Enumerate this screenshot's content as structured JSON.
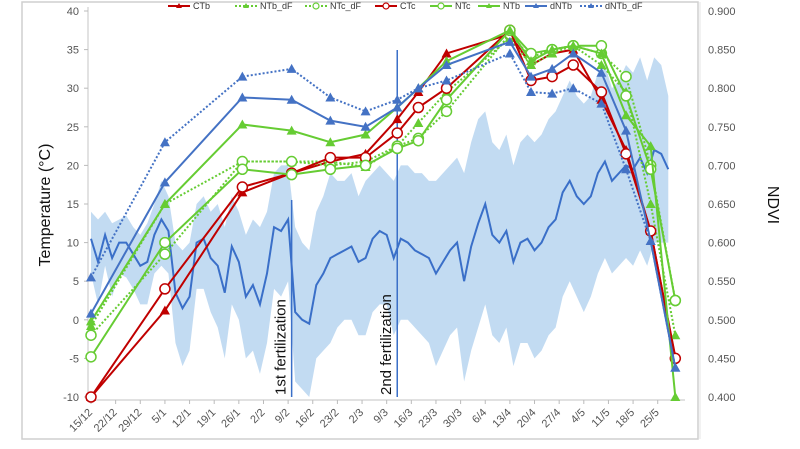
{
  "chart_data": {
    "type": "line",
    "title": "",
    "xlabel": "",
    "ylabel": "Temperature (°C)",
    "y2label": "NDVI",
    "ylim": [
      -10,
      40
    ],
    "y2lim": [
      0.4,
      0.9
    ],
    "yticks": [
      "40",
      "35",
      "30",
      "25",
      "20",
      "15",
      "10",
      "5",
      "0",
      "-5",
      "-10"
    ],
    "y2ticks": [
      "0.900",
      "0.850",
      "0.800",
      "0.750",
      "0.700",
      "0.650",
      "0.600",
      "0.550",
      "0.500",
      "0.450",
      "0.400"
    ],
    "xticks": [
      "15/12",
      "22/12",
      "29/12",
      "5/1",
      "12/1",
      "19/1",
      "26/1",
      "2/2",
      "9/2",
      "16/2",
      "23/2",
      "2/3",
      "9/3",
      "16/3",
      "23/3",
      "30/3",
      "6/4",
      "13/4",
      "20/4",
      "27/4",
      "4/5",
      "11/5",
      "18/5",
      "25/5"
    ],
    "xlim_days": [
      0,
      166
    ],
    "grid": false,
    "legend_position": "top",
    "annotations": [
      {
        "text": "1st fertilization",
        "day": 57
      },
      {
        "text": "2nd fertilization",
        "day": 87
      }
    ],
    "x_days": [
      0,
      21,
      43,
      57,
      68,
      78,
      87,
      93,
      101,
      119,
      125,
      131,
      137,
      145,
      152,
      159,
      166
    ],
    "series": [
      {
        "name": "CTb",
        "color": "#c00000",
        "marker": "triangle",
        "filled": true,
        "dash": false,
        "values": [
          -10,
          1.2,
          16.5,
          19,
          20.5,
          21.5,
          26,
          29.5,
          34.5,
          37,
          33,
          34.5,
          35,
          28.5,
          22,
          11.5,
          -4.8
        ]
      },
      {
        "name": "NTb_dF",
        "color": "#66cc33",
        "marker": "triangle",
        "filled": true,
        "dash": true,
        "values": [
          -0.8,
          15,
          20.5,
          20.5,
          20.5,
          19.8,
          22.5,
          25.5,
          29.5,
          36.5,
          33,
          34.5,
          35.5,
          33,
          29.5,
          15,
          -2
        ]
      },
      {
        "name": "NTc_dF",
        "color": "#66cc33",
        "marker": "circle",
        "filled": false,
        "dash": true,
        "values": [
          -2,
          8.5,
          20.5,
          20.5,
          20,
          20.5,
          22.5,
          23.5,
          27,
          37,
          34,
          35,
          35.5,
          34.5,
          31.5,
          20,
          2.5
        ]
      },
      {
        "name": "CTc",
        "color": "#c00000",
        "marker": "circle",
        "filled": false,
        "dash": false,
        "values": [
          -10,
          4,
          17.2,
          19,
          21,
          21,
          24.2,
          27.5,
          30,
          37.5,
          31,
          31.5,
          33,
          29.5,
          21.5,
          11.5,
          -5
        ]
      },
      {
        "name": "NTc",
        "color": "#66cc33",
        "marker": "circle",
        "filled": false,
        "dash": false,
        "values": [
          -4.8,
          10,
          19.5,
          18.8,
          19.5,
          20,
          22.2,
          23.2,
          28.5,
          37.5,
          34.5,
          35,
          35.5,
          35.5,
          29,
          19.5,
          2.5
        ]
      },
      {
        "name": "NTb",
        "color": "#66cc33",
        "marker": "triangle",
        "filled": true,
        "dash": false,
        "values": [
          -0.2,
          15,
          25.3,
          24.5,
          23,
          24,
          27.5,
          30,
          33.5,
          37.5,
          33.5,
          35,
          35.5,
          34.5,
          26.5,
          22.5,
          -10
        ]
      },
      {
        "name": "dNTb",
        "color": "#4472c4",
        "marker": "triangle",
        "filled": true,
        "dash": false,
        "values": [
          0.8,
          17.8,
          28.8,
          28.5,
          25.8,
          25,
          27.5,
          30,
          33,
          36,
          31.5,
          32.5,
          34.5,
          32,
          24.5,
          10.2,
          -6.2
        ]
      },
      {
        "name": "dNTb_dF",
        "color": "#4472c4",
        "marker": "triangle",
        "filled": true,
        "dash": true,
        "values": [
          5.5,
          23,
          31.5,
          32.5,
          28.8,
          27,
          28.5,
          30,
          31,
          34.5,
          29.5,
          29.3,
          30,
          28,
          19.5,
          10.2,
          -6.2
        ]
      }
    ],
    "ndvi": {
      "name": "NDVI",
      "color": "#3a6fc8",
      "band_color": "#b7d5f0",
      "x_days": [
        0,
        2,
        4,
        6,
        8,
        10,
        12,
        14,
        16,
        18,
        20,
        22,
        24,
        26,
        28,
        30,
        32,
        34,
        36,
        38,
        40,
        42,
        44,
        46,
        48,
        50,
        52,
        54,
        56,
        58,
        60,
        62,
        64,
        66,
        68,
        70,
        72,
        74,
        76,
        78,
        80,
        82,
        84,
        86,
        88,
        90,
        92,
        94,
        96,
        98,
        100,
        102,
        104,
        106,
        108,
        110,
        112,
        114,
        116,
        118,
        120,
        122,
        124,
        126,
        128,
        130,
        132,
        134,
        136,
        138,
        140,
        142,
        144,
        146,
        148,
        150,
        152,
        154,
        156,
        158,
        160,
        162,
        164
      ],
      "mean": [
        0.605,
        0.575,
        0.61,
        0.58,
        0.6,
        0.6,
        0.585,
        0.57,
        0.575,
        0.61,
        0.63,
        0.615,
        0.535,
        0.515,
        0.53,
        0.6,
        0.605,
        0.58,
        0.57,
        0.535,
        0.595,
        0.575,
        0.53,
        0.545,
        0.52,
        0.56,
        0.62,
        0.615,
        0.63,
        0.51,
        0.5,
        0.495,
        0.545,
        0.56,
        0.58,
        0.585,
        0.59,
        0.595,
        0.575,
        0.58,
        0.605,
        0.615,
        0.61,
        0.58,
        0.605,
        0.6,
        0.59,
        0.585,
        0.58,
        0.56,
        0.575,
        0.59,
        0.6,
        0.55,
        0.595,
        0.625,
        0.65,
        0.61,
        0.6,
        0.615,
        0.575,
        0.6,
        0.605,
        0.59,
        0.6,
        0.62,
        0.63,
        0.665,
        0.68,
        0.66,
        0.65,
        0.66,
        0.69,
        0.705,
        0.68,
        0.69,
        0.7,
        0.695,
        0.71,
        0.69,
        0.72,
        0.715,
        0.695
      ],
      "upper": [
        0.64,
        0.63,
        0.64,
        0.625,
        0.63,
        0.635,
        0.62,
        0.61,
        0.625,
        0.65,
        0.68,
        0.66,
        0.6,
        0.59,
        0.6,
        0.65,
        0.66,
        0.64,
        0.65,
        0.62,
        0.66,
        0.64,
        0.61,
        0.63,
        0.62,
        0.64,
        0.69,
        0.7,
        0.7,
        0.62,
        0.6,
        0.59,
        0.64,
        0.66,
        0.69,
        0.68,
        0.68,
        0.69,
        0.66,
        0.68,
        0.69,
        0.7,
        0.69,
        0.68,
        0.7,
        0.7,
        0.69,
        0.69,
        0.68,
        0.68,
        0.69,
        0.7,
        0.71,
        0.69,
        0.73,
        0.76,
        0.77,
        0.73,
        0.72,
        0.74,
        0.7,
        0.73,
        0.74,
        0.73,
        0.74,
        0.76,
        0.77,
        0.79,
        0.81,
        0.79,
        0.78,
        0.79,
        0.82,
        0.83,
        0.8,
        0.81,
        0.83,
        0.82,
        0.84,
        0.81,
        0.84,
        0.83,
        0.79
      ],
      "lower": [
        0.56,
        0.52,
        0.57,
        0.53,
        0.56,
        0.555,
        0.54,
        0.52,
        0.52,
        0.56,
        0.57,
        0.56,
        0.47,
        0.44,
        0.46,
        0.54,
        0.54,
        0.51,
        0.49,
        0.45,
        0.52,
        0.5,
        0.45,
        0.46,
        0.43,
        0.47,
        0.54,
        0.53,
        0.55,
        0.42,
        0.41,
        0.4,
        0.45,
        0.46,
        0.47,
        0.49,
        0.5,
        0.5,
        0.48,
        0.48,
        0.51,
        0.52,
        0.52,
        0.48,
        0.5,
        0.5,
        0.49,
        0.48,
        0.47,
        0.44,
        0.46,
        0.48,
        0.49,
        0.42,
        0.46,
        0.49,
        0.52,
        0.48,
        0.47,
        0.49,
        0.44,
        0.47,
        0.47,
        0.45,
        0.46,
        0.48,
        0.49,
        0.53,
        0.55,
        0.53,
        0.51,
        0.53,
        0.56,
        0.58,
        0.56,
        0.57,
        0.58,
        0.57,
        0.59,
        0.57,
        0.6,
        0.6,
        0.6
      ]
    }
  }
}
